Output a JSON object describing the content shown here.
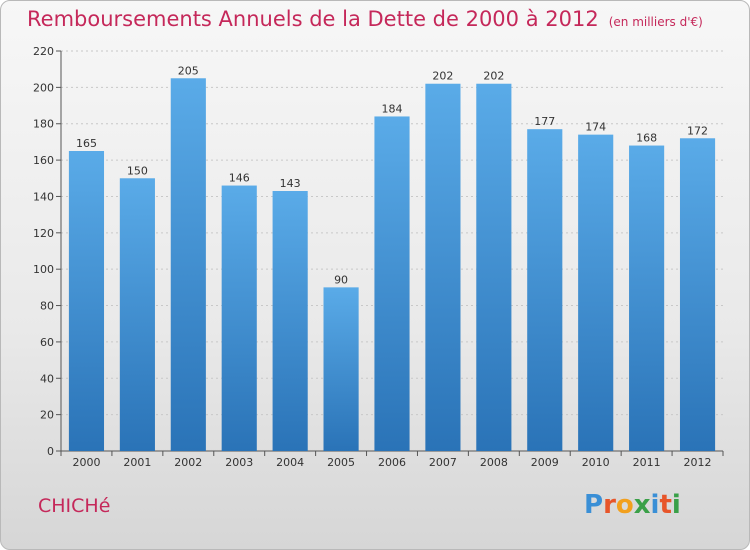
{
  "header": {
    "title": "Remboursements Annuels de la Dette de 2000 à 2012",
    "subtitle": "(en milliers d'€)"
  },
  "footer": {
    "commune": "CHICHé",
    "logo_letters": [
      "P",
      "r",
      "o",
      "x",
      "i",
      "t",
      "i"
    ],
    "logo_colors": [
      "#3a8fd6",
      "#e7552a",
      "#f2a01e",
      "#3aa048",
      "#3a8fd6",
      "#e7552a",
      "#3aa048"
    ]
  },
  "chart_data": {
    "type": "bar",
    "categories": [
      "2000",
      "2001",
      "2002",
      "2003",
      "2004",
      "2005",
      "2006",
      "2007",
      "2008",
      "2009",
      "2010",
      "2011",
      "2012"
    ],
    "values": [
      165,
      150,
      205,
      146,
      143,
      90,
      184,
      202,
      202,
      177,
      174,
      168,
      172
    ],
    "ylim": [
      0,
      220
    ],
    "yticks": [
      0,
      20,
      40,
      60,
      80,
      100,
      120,
      140,
      160,
      180,
      200,
      220
    ],
    "grid": true,
    "bar_color_top": "#5aabe8",
    "bar_color_bottom": "#2a73b7"
  }
}
